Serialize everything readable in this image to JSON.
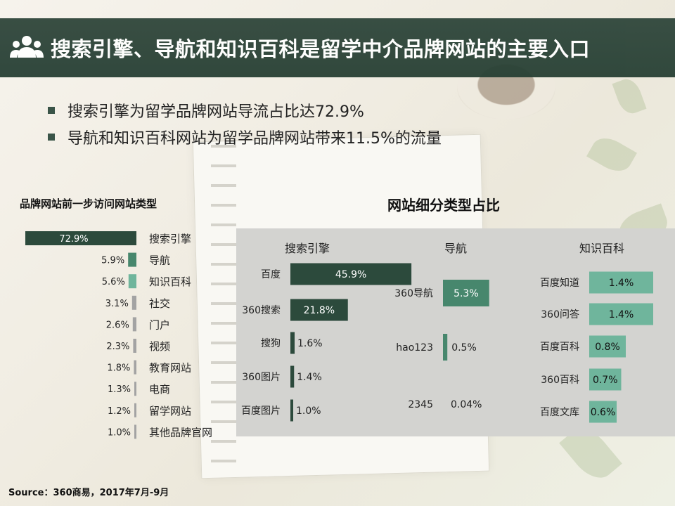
{
  "title": "搜索引擎、导航和知识百科是留学中介品牌网站的主要入口",
  "bullets": [
    "搜索引擎为留学品牌网站导流占比达72.9%",
    "导航和知识百科网站为留学品牌网站带来11.5%的流量"
  ],
  "colors": {
    "dark": "#2c4a3c",
    "mid": "#47876d",
    "light": "#6fb59c",
    "grey": "#a3a3a3",
    "panel": "#d3d3d0"
  },
  "chart_data": [
    {
      "type": "bar",
      "title": "品牌网站前一步访问网站类型",
      "orientation": "horizontal",
      "categories": [
        "搜索引擎",
        "导航",
        "知识百科",
        "社交",
        "门户",
        "视频",
        "教育网站",
        "电商",
        "留学网站",
        "其他品牌官网"
      ],
      "values": [
        72.9,
        5.9,
        5.6,
        3.1,
        2.6,
        2.3,
        1.8,
        1.3,
        1.2,
        1.0
      ],
      "labels": [
        "72.9%",
        "5.9%",
        "5.6%",
        "3.1%",
        "2.6%",
        "2.3%",
        "1.8%",
        "1.3%",
        "1.2%",
        "1.0%"
      ],
      "unit": "%"
    },
    {
      "type": "bar",
      "title": "网站细分类型占比",
      "orientation": "horizontal",
      "groups": [
        {
          "name": "搜索引擎",
          "categories": [
            "百度",
            "360搜索",
            "搜狗",
            "360图片",
            "百度图片"
          ],
          "values": [
            45.9,
            21.8,
            1.6,
            1.4,
            1.0
          ],
          "labels": [
            "45.9%",
            "21.8%",
            "1.6%",
            "1.4%",
            "1.0%"
          ]
        },
        {
          "name": "导航",
          "categories": [
            "360导航",
            "hao123",
            "2345"
          ],
          "values": [
            5.3,
            0.5,
            0.04
          ],
          "labels": [
            "5.3%",
            "0.5%",
            "0.04%"
          ]
        },
        {
          "name": "知识百科",
          "categories": [
            "百度知道",
            "360问答",
            "百度百科",
            "360百科",
            "百度文库"
          ],
          "values": [
            1.4,
            1.4,
            0.8,
            0.7,
            0.6
          ],
          "labels": [
            "1.4%",
            "1.4%",
            "0.8%",
            "0.7%",
            "0.6%"
          ]
        }
      ],
      "unit": "%"
    }
  ],
  "source": "Source：360商易，2017年7月-9月"
}
